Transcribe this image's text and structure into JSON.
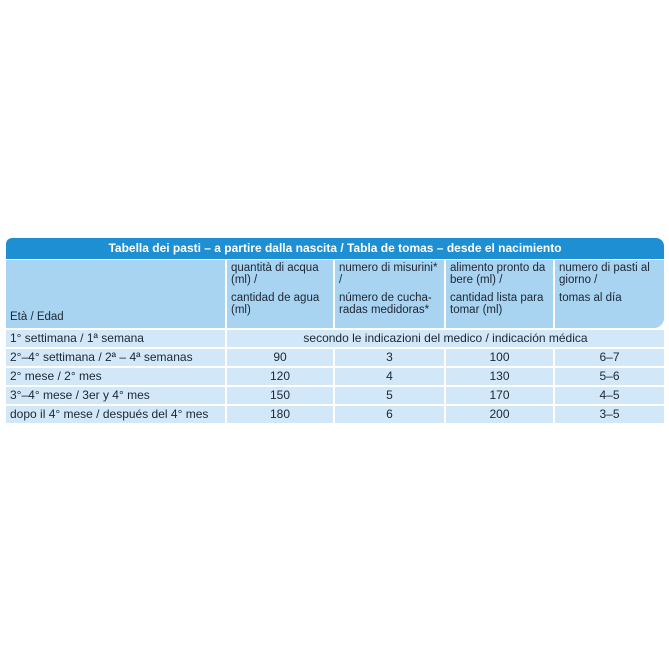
{
  "title": "Tabella dei pasti – a partire dalla nascita / Tabla de tomas – desde el nacimiento",
  "colors": {
    "title_bar": "#1f8fd4",
    "header": "#a8d3f1",
    "row": "#d2e8f8"
  },
  "headers": [
    {
      "line1": "",
      "line2": "Età / Edad"
    },
    {
      "line1": "quantità di acqua (ml) /",
      "line2": "cantidad de agua (ml)"
    },
    {
      "line1": "numero di misurini* /",
      "line2": "número de cucha-radas medidoras*"
    },
    {
      "line1": "alimento pronto da bere (ml) /",
      "line2": "cantidad lista para tomar (ml)"
    },
    {
      "line1": "numero di pasti al giorno /",
      "line2": "tomas al día"
    }
  ],
  "first_row": {
    "age": "1° settimana / 1ª semana",
    "note": "secondo le indicazioni del medico / indicación médica"
  },
  "rows": [
    {
      "age": "2°–4° settimana / 2ª – 4ª semanas",
      "water": "90",
      "scoops": "3",
      "ready": "100",
      "meals": "6–7"
    },
    {
      "age": "2° mese / 2° mes",
      "water": "120",
      "scoops": "4",
      "ready": "130",
      "meals": "5–6"
    },
    {
      "age": "3°–4° mese / 3er y 4° mes",
      "water": "150",
      "scoops": "5",
      "ready": "170",
      "meals": "4–5"
    },
    {
      "age": "dopo il 4° mese / después del 4° mes",
      "water": "180",
      "scoops": "6",
      "ready": "200",
      "meals": "3–5"
    }
  ]
}
